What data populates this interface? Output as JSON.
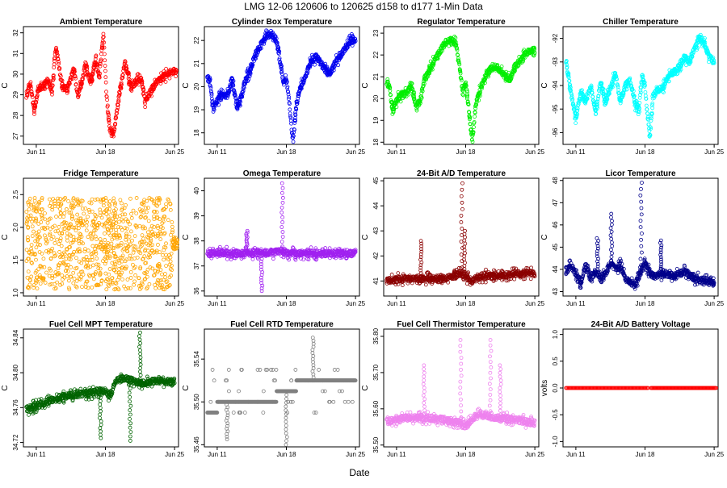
{
  "page": {
    "title": "LMG   12-06     120606 to 120625     d158 to d177   1-Min Data",
    "xlabel": "Date"
  },
  "chart_data": [
    {
      "type": "scatter",
      "title": "Ambient Temperature",
      "ylabel": "C",
      "color": "#ff0000",
      "xticks": [
        "Jun 11",
        "Jun 18",
        "Jun 25"
      ],
      "xtick_days": [
        11,
        18,
        25
      ],
      "xlim": [
        9.7,
        25.4
      ],
      "yticks": [
        "27",
        "28",
        "29",
        "30",
        "31",
        "32"
      ],
      "ytick_values": [
        27,
        28,
        29,
        30,
        31,
        32
      ],
      "ylim": [
        26.6,
        32.3
      ],
      "series": [
        {
          "name": "Ambient",
          "style": "band",
          "x": [
            10,
            10.4,
            10.8,
            11.2,
            11.6,
            12.2,
            12.6,
            13,
            13.6,
            14.2,
            14.8,
            15.2,
            15.6,
            16,
            16.5,
            17,
            17.4,
            17.8,
            18.1,
            18.4,
            18.8,
            19.4,
            20,
            20.6,
            21.2,
            21.6,
            22,
            22.6,
            23.2,
            24,
            24.6,
            25.2
          ],
          "y": [
            29.0,
            29.5,
            28.2,
            29.3,
            29.4,
            29.7,
            29.2,
            31.4,
            29.4,
            29.3,
            30.3,
            28.9,
            29.6,
            30.5,
            29.6,
            30.7,
            29.9,
            32.0,
            29.0,
            27.4,
            27.0,
            29.0,
            30.6,
            29.3,
            29.7,
            29.8,
            28.7,
            29.2,
            29.6,
            29.9,
            30.1,
            30.2
          ]
        }
      ]
    },
    {
      "type": "scatter",
      "title": "Cylinder Box Temperature",
      "ylabel": "C",
      "color": "#0000ee",
      "xticks": [
        "Jun 11",
        "Jun 18",
        "Jun 25"
      ],
      "xtick_days": [
        11,
        18,
        25
      ],
      "xlim": [
        9.7,
        25.4
      ],
      "yticks": [
        "18",
        "19",
        "20",
        "21",
        "22"
      ],
      "ytick_values": [
        18,
        19,
        20,
        21,
        22
      ],
      "ylim": [
        17.5,
        22.6
      ],
      "series": [
        {
          "name": "Cylinder Box",
          "style": "band",
          "x": [
            10,
            10.3,
            10.6,
            11,
            11.5,
            12,
            12.5,
            13,
            13.4,
            13.8,
            14.2,
            14.8,
            15.4,
            16,
            16.5,
            17,
            17.4,
            17.7,
            18,
            18.3,
            18.5,
            18.7,
            19,
            19.4,
            19.8,
            20.4,
            21,
            21.5,
            22,
            22.5,
            23,
            23.5,
            24,
            24.5,
            25
          ],
          "y": [
            20.4,
            20.2,
            19.0,
            19.4,
            19.7,
            19.6,
            20.3,
            19.2,
            19.5,
            20.2,
            20.6,
            21.3,
            21.8,
            22.2,
            22.3,
            22.0,
            21.0,
            20.1,
            20.3,
            19.4,
            18.3,
            17.6,
            19.2,
            19.9,
            20.3,
            21.0,
            21.3,
            21.0,
            20.7,
            20.6,
            21.1,
            21.3,
            21.7,
            22.0,
            22.0
          ]
        }
      ]
    },
    {
      "type": "scatter",
      "title": "Regulator Temperature",
      "ylabel": "C",
      "color": "#00ee00",
      "xticks": [
        "Jun 11",
        "Jun 18",
        "Jun 25"
      ],
      "xtick_days": [
        11,
        18,
        25
      ],
      "xlim": [
        9.7,
        25.4
      ],
      "yticks": [
        "18",
        "19",
        "20",
        "21",
        "22",
        "23"
      ],
      "ytick_values": [
        18,
        19,
        20,
        21,
        22,
        23
      ],
      "ylim": [
        17.9,
        23.3
      ],
      "series": [
        {
          "name": "Regulator",
          "style": "band",
          "x": [
            10,
            10.3,
            10.6,
            11,
            11.5,
            12,
            12.5,
            13,
            13.4,
            13.8,
            14.2,
            14.8,
            15.4,
            16,
            16.5,
            17,
            17.4,
            17.7,
            18,
            18.3,
            18.5,
            18.7,
            19,
            19.4,
            19.8,
            20.4,
            21,
            21.5,
            22,
            22.5,
            23,
            23.5,
            24,
            24.5,
            25
          ],
          "y": [
            20.7,
            20.5,
            19.4,
            19.9,
            20.2,
            20.2,
            20.6,
            19.6,
            19.9,
            20.8,
            21.2,
            21.7,
            22.2,
            22.6,
            22.7,
            22.5,
            21.4,
            20.3,
            20.7,
            19.6,
            18.6,
            18.1,
            19.7,
            20.3,
            20.8,
            21.3,
            21.5,
            21.3,
            21.0,
            20.9,
            21.5,
            21.7,
            22.0,
            22.2,
            22.2
          ]
        }
      ]
    },
    {
      "type": "scatter",
      "title": "Chiller Temperature",
      "ylabel": "C",
      "color": "#00ffff",
      "xticks": [
        "Jun 11",
        "Jun 18",
        "Jun 25"
      ],
      "xtick_days": [
        11,
        18,
        25
      ],
      "xlim": [
        9.7,
        25.4
      ],
      "yticks": [
        "-96",
        "-95",
        "-94",
        "-93",
        "-92"
      ],
      "ytick_values": [
        -96,
        -95,
        -94,
        -93,
        -92
      ],
      "ylim": [
        -96.5,
        -91.5
      ],
      "series": [
        {
          "name": "Chiller",
          "style": "band",
          "x": [
            10,
            10.5,
            11,
            11.5,
            12,
            12.5,
            13,
            13.5,
            14,
            14.5,
            15,
            15.5,
            16,
            16.5,
            17,
            17.4,
            17.7,
            18,
            18.2,
            18.5,
            18.8,
            19.2,
            19.8,
            20.4,
            21,
            21.5,
            22,
            22.5,
            23,
            23.5,
            24,
            24.5,
            25
          ],
          "y": [
            -93.0,
            -94.3,
            -95.4,
            -94.2,
            -94.7,
            -94.0,
            -95.2,
            -93.8,
            -94.7,
            -94.1,
            -93.5,
            -94.7,
            -94.0,
            -93.8,
            -94.8,
            -95.0,
            -93.6,
            -94.0,
            -95.0,
            -96.2,
            -94.5,
            -94.2,
            -94.1,
            -93.6,
            -93.4,
            -93.2,
            -92.8,
            -93.0,
            -92.4,
            -92.0,
            -92.2,
            -92.8,
            -93.0
          ]
        }
      ]
    },
    {
      "type": "scatter",
      "title": "Fridge Temperature",
      "ylabel": "C",
      "color": "#ffa500",
      "xticks": [
        "Jun 11",
        "Jun 18",
        "Jun 25"
      ],
      "xtick_days": [
        11,
        18,
        25
      ],
      "xlim": [
        9.7,
        25.4
      ],
      "yticks": [
        "1.0",
        "1.5",
        "2.0",
        "2.5"
      ],
      "ytick_values": [
        1.0,
        1.5,
        2.0,
        2.5
      ],
      "ylim": [
        0.95,
        2.75
      ],
      "series": [
        {
          "name": "Fridge",
          "style": "noise",
          "x": [
            10,
            24.8
          ],
          "y": [
            1.05,
            2.45
          ],
          "tail_x": [
            24.8,
            25.3
          ],
          "tail_y": [
            1.65,
            1.85
          ]
        }
      ]
    },
    {
      "type": "scatter",
      "title": "Omega Temperature",
      "ylabel": "C",
      "color": "#a020f0",
      "xticks": [
        "Jun 11",
        "Jun 18",
        "Jun 25"
      ],
      "xtick_days": [
        11,
        18,
        25
      ],
      "xlim": [
        9.7,
        25.4
      ],
      "yticks": [
        "36",
        "37",
        "38",
        "39",
        "40"
      ],
      "ytick_values": [
        36,
        37,
        38,
        39,
        40
      ],
      "ylim": [
        35.8,
        40.5
      ],
      "series": [
        {
          "name": "Omega",
          "style": "band",
          "x": [
            10,
            12,
            14,
            16,
            17.5,
            18,
            19,
            21,
            23,
            25
          ],
          "y": [
            37.5,
            37.5,
            37.5,
            37.5,
            37.6,
            37.5,
            37.5,
            37.5,
            37.5,
            37.5
          ]
        }
      ],
      "spikes": [
        {
          "x": 17.6,
          "y": 40.3
        },
        {
          "x": 14.0,
          "y": 38.4
        },
        {
          "x": 15.5,
          "y": 36.0
        }
      ]
    },
    {
      "type": "scatter",
      "title": "24-Bit A/D Temperature",
      "ylabel": "C",
      "color": "#8b0000",
      "xticks": [
        "Jun 11",
        "Jun 18",
        "Jun 25"
      ],
      "xtick_days": [
        11,
        18,
        25
      ],
      "xlim": [
        9.7,
        25.4
      ],
      "yticks": [
        "41",
        "42",
        "43",
        "44",
        "45"
      ],
      "ytick_values": [
        41,
        42,
        43,
        44,
        45
      ],
      "ylim": [
        40.4,
        45.1
      ],
      "series": [
        {
          "name": "A/D",
          "style": "band",
          "x": [
            10,
            12,
            14,
            16,
            17.5,
            18,
            18.6,
            19.5,
            21,
            23,
            25
          ],
          "y": [
            41.0,
            41.1,
            41.1,
            41.1,
            41.3,
            41.2,
            41.0,
            41.2,
            41.2,
            41.3,
            41.3
          ]
        }
      ],
      "spikes": [
        {
          "x": 17.6,
          "y": 44.9
        },
        {
          "x": 13.5,
          "y": 42.6
        },
        {
          "x": 17.9,
          "y": 43.0
        }
      ]
    },
    {
      "type": "scatter",
      "title": "Licor Temperature",
      "ylabel": "C",
      "color": "#00008b",
      "xticks": [
        "Jun 11",
        "Jun 18",
        "Jun 25"
      ],
      "xtick_days": [
        11,
        18,
        25
      ],
      "xlim": [
        9.7,
        25.4
      ],
      "yticks": [
        "43",
        "44",
        "45",
        "46",
        "47",
        "48"
      ],
      "ytick_values": [
        43,
        44,
        45,
        46,
        47,
        48
      ],
      "ylim": [
        42.8,
        48.1
      ],
      "series": [
        {
          "name": "Licor",
          "style": "band",
          "x": [
            10,
            10.5,
            11,
            11.5,
            12,
            12.5,
            13,
            13.5,
            14,
            14.5,
            15,
            15.5,
            16,
            16.5,
            17,
            17.5,
            18,
            18.5,
            19,
            19.5,
            20,
            21,
            22,
            23,
            24,
            25
          ],
          "y": [
            43.9,
            44.2,
            43.8,
            43.4,
            44.2,
            43.6,
            43.9,
            43.6,
            43.8,
            44.3,
            44.0,
            44.2,
            43.6,
            43.4,
            43.3,
            43.8,
            44.3,
            43.8,
            43.7,
            43.8,
            43.8,
            43.7,
            43.9,
            43.6,
            43.5,
            43.4
          ]
        }
      ],
      "spikes": [
        {
          "x": 17.6,
          "y": 47.9
        },
        {
          "x": 14.6,
          "y": 46.5
        },
        {
          "x": 13.2,
          "y": 45.4
        },
        {
          "x": 19.6,
          "y": 45.3
        }
      ]
    },
    {
      "type": "scatter",
      "title": "Fuel Cell MPT Temperature",
      "ylabel": "C",
      "color": "#006400",
      "xticks": [
        "Jun 11",
        "Jun 18",
        "Jun 25"
      ],
      "xtick_days": [
        11,
        18,
        25
      ],
      "xlim": [
        9.7,
        25.4
      ],
      "yticks": [
        "34.72",
        "34.76",
        "34.80",
        "34.84"
      ],
      "ytick_values": [
        34.72,
        34.76,
        34.8,
        34.84
      ],
      "ylim": [
        34.715,
        34.85
      ],
      "series": [
        {
          "name": "MPT",
          "style": "band",
          "x": [
            10,
            11,
            12,
            13,
            14,
            15,
            16,
            17,
            18,
            18.5,
            19,
            20,
            21,
            22,
            23,
            24,
            25
          ],
          "y": [
            34.758,
            34.762,
            34.766,
            34.77,
            34.773,
            34.775,
            34.776,
            34.778,
            34.78,
            34.772,
            34.79,
            34.794,
            34.79,
            34.788,
            34.791,
            34.79,
            34.79
          ]
        }
      ],
      "spikes": [
        {
          "x": 21.5,
          "y": 34.846
        },
        {
          "x": 17.5,
          "y": 34.725
        },
        {
          "x": 20.5,
          "y": 34.722
        }
      ]
    },
    {
      "type": "scatter",
      "title": "Fuel Cell RTD Temperature",
      "ylabel": "C",
      "color": "#808080",
      "xticks": [
        "Jun 11",
        "Jun 18",
        "Jun 25"
      ],
      "xtick_days": [
        11,
        18,
        25
      ],
      "xlim": [
        9.7,
        25.4
      ],
      "yticks": [
        "35.46",
        "35.50",
        "35.54"
      ],
      "ytick_values": [
        35.46,
        35.5,
        35.54
      ],
      "ylim": [
        35.458,
        35.568
      ],
      "series": [
        {
          "name": "RTD",
          "style": "levels",
          "levels": [
            35.49,
            35.5,
            35.51,
            35.52,
            35.53
          ],
          "x": [
            10,
            12,
            14,
            16,
            18,
            20,
            22,
            24,
            25
          ],
          "y": [
            35.49,
            35.5,
            35.5,
            35.5,
            35.51,
            35.52,
            35.52,
            35.52,
            35.52
          ]
        }
      ],
      "spikes": [
        {
          "x": 20.7,
          "y": 35.56
        },
        {
          "x": 18.0,
          "y": 35.46
        },
        {
          "x": 12.0,
          "y": 35.465
        }
      ]
    },
    {
      "type": "scatter",
      "title": "Fuel Cell Thermistor Temperature",
      "ylabel": "C",
      "color": "#ee82ee",
      "xticks": [
        "Jun 11",
        "Jun 18",
        "Jun 25"
      ],
      "xtick_days": [
        11,
        18,
        25
      ],
      "xlim": [
        9.7,
        25.4
      ],
      "yticks": [
        "35.50",
        "35.60",
        "35.70",
        "35.80"
      ],
      "ytick_values": [
        35.5,
        35.6,
        35.7,
        35.8
      ],
      "ylim": [
        35.495,
        35.82
      ],
      "series": [
        {
          "name": "Thermistor",
          "style": "band",
          "x": [
            10,
            12,
            14,
            16,
            17.5,
            18,
            18.8,
            19.5,
            21,
            23,
            25
          ],
          "y": [
            35.565,
            35.575,
            35.575,
            35.57,
            35.56,
            35.55,
            35.575,
            35.585,
            35.575,
            35.57,
            35.56
          ]
        }
      ],
      "spikes": [
        {
          "x": 17.5,
          "y": 35.79
        },
        {
          "x": 20.5,
          "y": 35.79
        },
        {
          "x": 13.8,
          "y": 35.72
        },
        {
          "x": 21.5,
          "y": 35.72
        }
      ]
    },
    {
      "type": "scatter",
      "title": "24-Bit A/D Battery Voltage",
      "ylabel": "volts",
      "color": "#ff0000",
      "xticks": [
        "Jun 11",
        "Jun 18",
        "Jun 25"
      ],
      "xtick_days": [
        11,
        18,
        25
      ],
      "xlim": [
        9.7,
        25.4
      ],
      "yticks": [
        "-1.0",
        "-0.5",
        "0.0",
        "0.5",
        "1.0"
      ],
      "ytick_values": [
        -1.0,
        -0.5,
        0.0,
        0.5,
        1.0
      ],
      "ylim": [
        -1.1,
        1.1
      ],
      "series": [
        {
          "name": "Battery",
          "style": "flat",
          "segments": [
            [
              10,
              18.3
            ],
            [
              18.6,
              25.2
            ]
          ],
          "y": 0.0
        }
      ]
    }
  ]
}
